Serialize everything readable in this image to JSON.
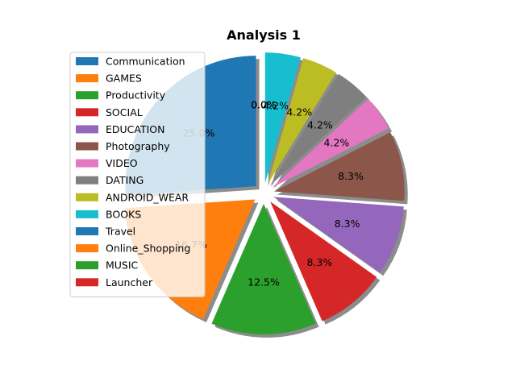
{
  "chart_data": {
    "type": "pie",
    "title": "Analysis 1",
    "labels": [
      "Communication",
      "GAMES",
      "Productivity",
      "SOCIAL",
      "EDUCATION",
      "Photography",
      "VIDEO",
      "DATING",
      "ANDROID_WEAR",
      "BOOKS",
      "Travel",
      "Online_Shopping",
      "MUSIC",
      "Launcher"
    ],
    "values": [
      25.0,
      16.7,
      12.5,
      8.3,
      8.3,
      8.3,
      4.2,
      4.2,
      4.2,
      4.2,
      0.0,
      0.0,
      0.0,
      0.0
    ],
    "pct_labels": [
      "25.0%",
      "16.7%",
      "12.5%",
      "8.3%",
      "8.3%",
      "8.3%",
      "4.2%",
      "4.2%",
      "4.2%",
      "4.2%",
      "0.0%",
      "0.0%",
      "0.0%",
      "0.0%"
    ],
    "colors": [
      "#1f77b4",
      "#ff7f0e",
      "#2ca02c",
      "#d62728",
      "#9467bd",
      "#8c564b",
      "#e377c2",
      "#7f7f7f",
      "#bcbd22",
      "#17becf",
      "#1f77b4",
      "#ff7f0e",
      "#2ca02c",
      "#d62728"
    ],
    "start_angle_deg": 90,
    "direction": "counterclockwise",
    "exploded": true,
    "shadow": true,
    "legend_position": "upper-left"
  }
}
